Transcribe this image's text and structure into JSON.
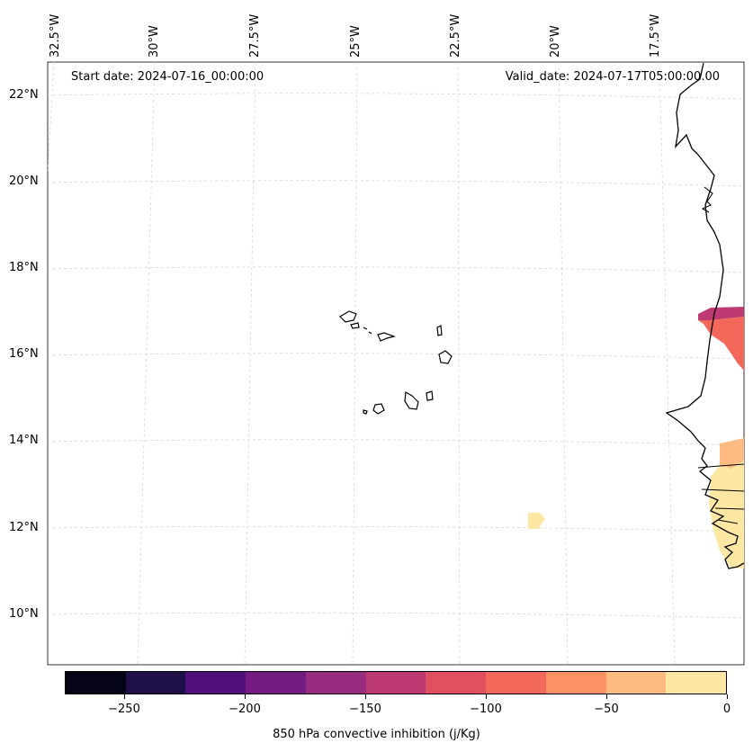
{
  "map": {
    "start_date": "Start date: 2024-07-16_00:00:00",
    "valid_date": "Valid_date: 2024-07-17T05:00:00.00",
    "lon_labels": [
      "32.5°W",
      "30°W",
      "27.5°W",
      "25°W",
      "22.5°W",
      "20°W",
      "17.5°W"
    ],
    "lat_labels": [
      "22°N",
      "20°N",
      "18°N",
      "16°N",
      "14°N",
      "12°N",
      "10°N"
    ]
  },
  "colorbar": {
    "label": "850 hPa convective inhibition (j/Kg)",
    "tick_labels": [
      "−250",
      "−200",
      "−150",
      "−100",
      "−50",
      "0"
    ],
    "colors": [
      "#050416",
      "#1f1147",
      "#4f107b",
      "#731b81",
      "#982d80",
      "#be3a72",
      "#e05061",
      "#f2695c",
      "#fc9366",
      "#febb81",
      "#fee7a2"
    ]
  }
}
